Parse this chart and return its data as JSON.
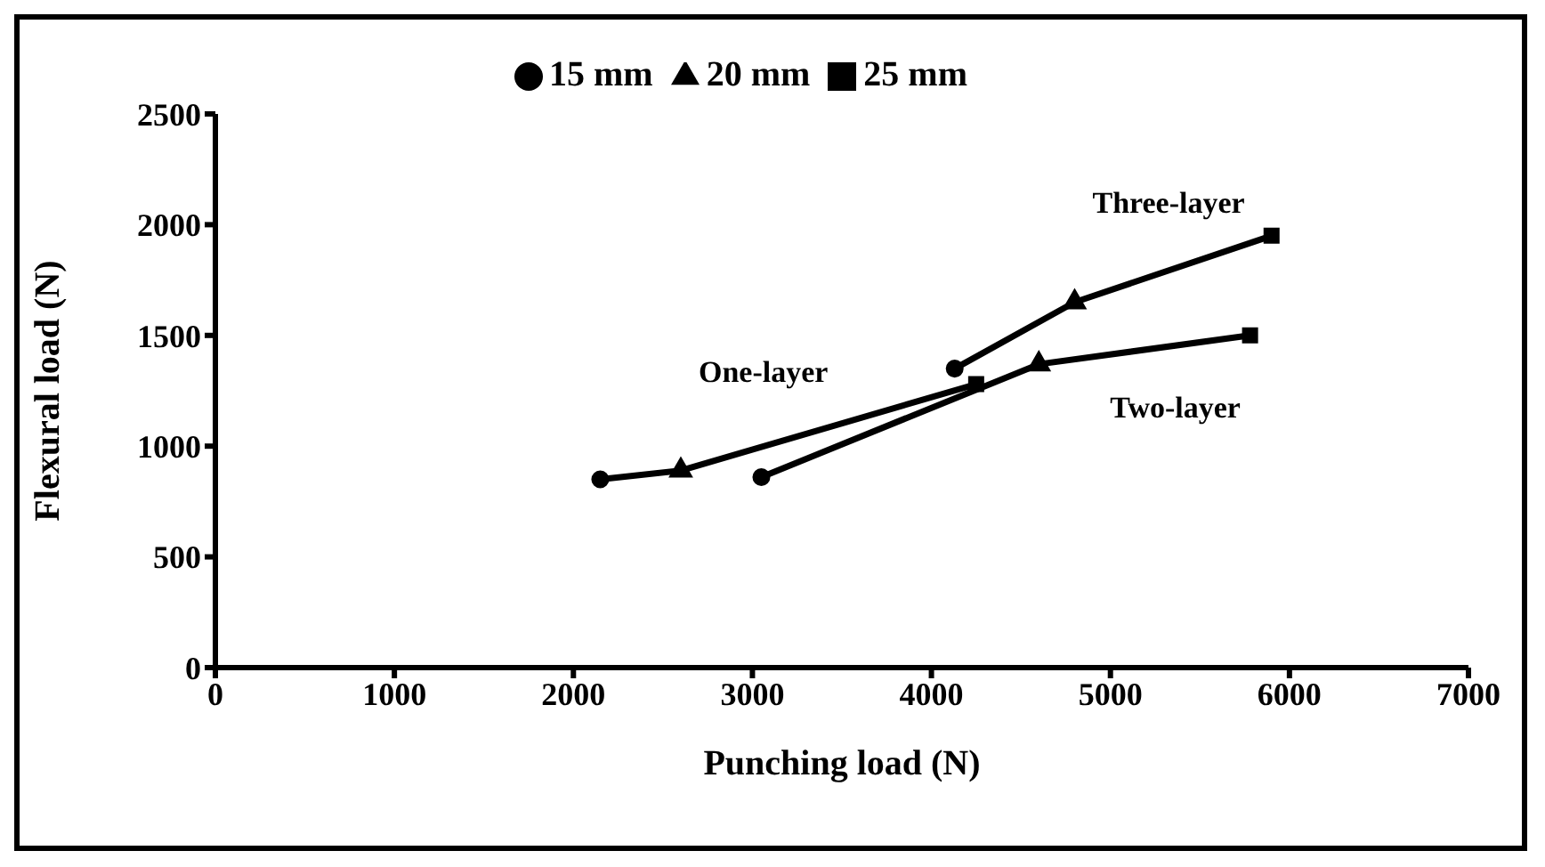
{
  "chart_data": {
    "type": "line",
    "xlabel": "Punching load (N)",
    "ylabel": "Flexural load (N)",
    "xlim": [
      0,
      7000
    ],
    "xticks": [
      0,
      1000,
      2000,
      3000,
      4000,
      5000,
      6000,
      7000
    ],
    "ylim": [
      0,
      2500
    ],
    "yticks": [
      0,
      500,
      1000,
      1500,
      2000,
      2500
    ],
    "grid": false,
    "legend": "top",
    "line_style": "solid",
    "series": [
      {
        "name": "One-layer",
        "color": "#000000",
        "x": [
          2150,
          2600,
          4250
        ],
        "values": [
          850,
          890,
          1280
        ],
        "marker": "none"
      },
      {
        "name": "Two-layer",
        "color": "#000000",
        "x": [
          3050,
          4600,
          5780
        ],
        "values": [
          860,
          1370,
          1500
        ],
        "marker": "none"
      },
      {
        "name": "Three-layer",
        "color": "#000000",
        "x": [
          4130,
          4800,
          5900
        ],
        "values": [
          1350,
          1650,
          1950
        ],
        "marker": "none"
      },
      {
        "name": "15 mm",
        "type": "scatter",
        "color": "#000000",
        "x": [
          2150,
          3050,
          4130
        ],
        "values": [
          850,
          860,
          1350
        ],
        "marker": "circle"
      },
      {
        "name": "20 mm",
        "type": "scatter",
        "color": "#000000",
        "x": [
          2600,
          4600,
          4800
        ],
        "values": [
          890,
          1370,
          1650
        ],
        "marker": "triangle"
      },
      {
        "name": "25 mm",
        "type": "scatter",
        "color": "#000000",
        "x": [
          4250,
          5780,
          5900
        ],
        "values": [
          1280,
          1500,
          1950
        ],
        "marker": "square"
      }
    ]
  }
}
